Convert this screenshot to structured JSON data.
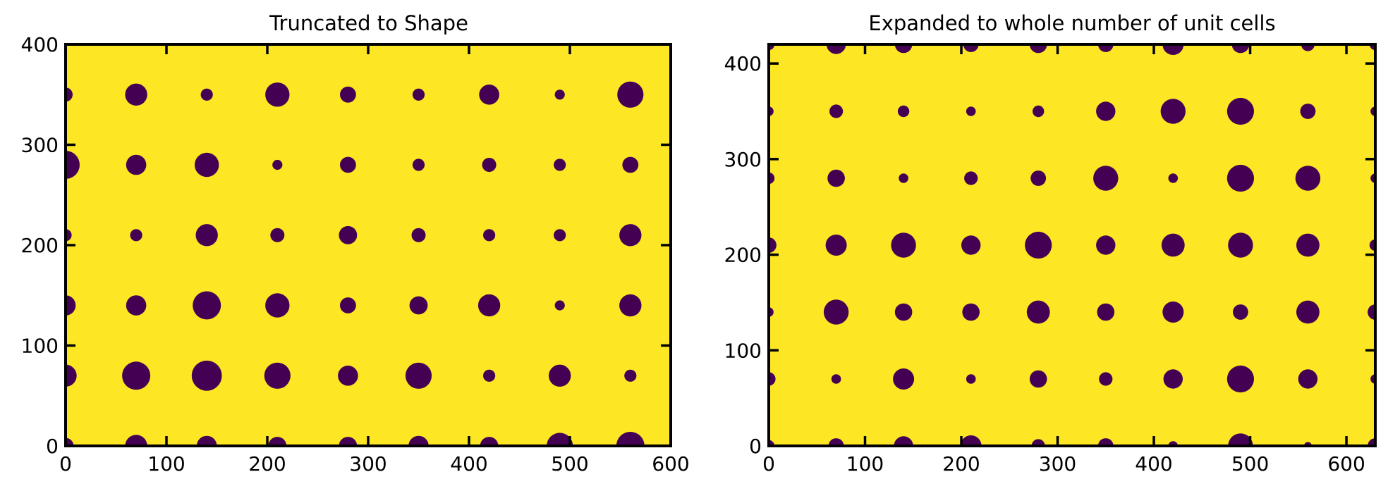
{
  "colors": {
    "background": "#fde725",
    "dots": "#440154",
    "frame": "#000000"
  },
  "chart_data": [
    {
      "type": "scatter",
      "title": "Truncated to Shape",
      "xlabel": "",
      "ylabel": "",
      "xlim": [
        0,
        600
      ],
      "ylim": [
        0,
        400
      ],
      "xticks": [
        "0",
        "100",
        "200",
        "300",
        "400",
        "500",
        "600"
      ],
      "yticks": [
        "0",
        "100",
        "200",
        "300",
        "400"
      ],
      "grid": false,
      "series": [
        {
          "marker_size_unit": "radius in data units",
          "points": [
            [
              0,
              0,
              8
            ],
            [
              70,
              0,
              11
            ],
            [
              140,
              0,
              10
            ],
            [
              210,
              0,
              9
            ],
            [
              280,
              0,
              9
            ],
            [
              350,
              0,
              10
            ],
            [
              420,
              0,
              9
            ],
            [
              490,
              0,
              13
            ],
            [
              560,
              0,
              14
            ],
            [
              0,
              70,
              11
            ],
            [
              70,
              70,
              14
            ],
            [
              140,
              70,
              15
            ],
            [
              210,
              70,
              13
            ],
            [
              280,
              70,
              10
            ],
            [
              350,
              70,
              13
            ],
            [
              420,
              70,
              6
            ],
            [
              490,
              70,
              11
            ],
            [
              560,
              70,
              6
            ],
            [
              0,
              140,
              10
            ],
            [
              70,
              140,
              10
            ],
            [
              140,
              140,
              14
            ],
            [
              210,
              140,
              12
            ],
            [
              280,
              140,
              8
            ],
            [
              350,
              140,
              9
            ],
            [
              420,
              140,
              11
            ],
            [
              490,
              140,
              5
            ],
            [
              560,
              140,
              11
            ],
            [
              0,
              210,
              6
            ],
            [
              70,
              210,
              6
            ],
            [
              140,
              210,
              11
            ],
            [
              210,
              210,
              7
            ],
            [
              280,
              210,
              9
            ],
            [
              350,
              210,
              7
            ],
            [
              420,
              210,
              6
            ],
            [
              490,
              210,
              6
            ],
            [
              560,
              210,
              11
            ],
            [
              0,
              280,
              14
            ],
            [
              70,
              280,
              10
            ],
            [
              140,
              280,
              12
            ],
            [
              210,
              280,
              5
            ],
            [
              280,
              280,
              8
            ],
            [
              350,
              280,
              6
            ],
            [
              420,
              280,
              7
            ],
            [
              490,
              280,
              6
            ],
            [
              560,
              280,
              8
            ],
            [
              0,
              350,
              7
            ],
            [
              70,
              350,
              11
            ],
            [
              140,
              350,
              6
            ],
            [
              210,
              350,
              12
            ],
            [
              280,
              350,
              8
            ],
            [
              350,
              350,
              6
            ],
            [
              420,
              350,
              10
            ],
            [
              490,
              350,
              5
            ],
            [
              560,
              350,
              13
            ]
          ]
        }
      ]
    },
    {
      "type": "scatter",
      "title": "Expanded to whole number of unit cells",
      "xlabel": "",
      "ylabel": "",
      "xlim": [
        0,
        630
      ],
      "ylim": [
        0,
        420
      ],
      "xticks": [
        "0",
        "100",
        "200",
        "300",
        "400",
        "500",
        "600"
      ],
      "yticks": [
        "0",
        "100",
        "200",
        "300",
        "400"
      ],
      "grid": false,
      "series": [
        {
          "marker_size_unit": "radius in data units",
          "points": [
            [
              0,
              0,
              6
            ],
            [
              70,
              0,
              8
            ],
            [
              140,
              0,
              10
            ],
            [
              210,
              0,
              11
            ],
            [
              280,
              0,
              7
            ],
            [
              350,
              0,
              8
            ],
            [
              420,
              0,
              5
            ],
            [
              490,
              0,
              13
            ],
            [
              560,
              0,
              4
            ],
            [
              630,
              0,
              8
            ],
            [
              0,
              70,
              7
            ],
            [
              70,
              70,
              5
            ],
            [
              140,
              70,
              11
            ],
            [
              210,
              70,
              5
            ],
            [
              280,
              70,
              9
            ],
            [
              350,
              70,
              7
            ],
            [
              420,
              70,
              10
            ],
            [
              490,
              70,
              14
            ],
            [
              560,
              70,
              10
            ],
            [
              630,
              70,
              5
            ],
            [
              0,
              140,
              5
            ],
            [
              70,
              140,
              13
            ],
            [
              140,
              140,
              9
            ],
            [
              210,
              140,
              9
            ],
            [
              280,
              140,
              12
            ],
            [
              350,
              140,
              9
            ],
            [
              420,
              140,
              11
            ],
            [
              490,
              140,
              8
            ],
            [
              560,
              140,
              12
            ],
            [
              630,
              140,
              8
            ],
            [
              0,
              210,
              8
            ],
            [
              70,
              210,
              11
            ],
            [
              140,
              210,
              13
            ],
            [
              210,
              210,
              10
            ],
            [
              280,
              210,
              14
            ],
            [
              350,
              210,
              10
            ],
            [
              420,
              210,
              12
            ],
            [
              490,
              210,
              13
            ],
            [
              560,
              210,
              12
            ],
            [
              630,
              210,
              6
            ],
            [
              0,
              280,
              6
            ],
            [
              70,
              280,
              9
            ],
            [
              140,
              280,
              5
            ],
            [
              210,
              280,
              7
            ],
            [
              280,
              280,
              8
            ],
            [
              350,
              280,
              13
            ],
            [
              420,
              280,
              5
            ],
            [
              490,
              280,
              14
            ],
            [
              560,
              280,
              13
            ],
            [
              630,
              280,
              5
            ],
            [
              0,
              350,
              5
            ],
            [
              70,
              350,
              7
            ],
            [
              140,
              350,
              6
            ],
            [
              210,
              350,
              5
            ],
            [
              280,
              350,
              6
            ],
            [
              350,
              350,
              10
            ],
            [
              420,
              350,
              13
            ],
            [
              490,
              350,
              14
            ],
            [
              560,
              350,
              8
            ],
            [
              630,
              350,
              5
            ],
            [
              0,
              420,
              6
            ],
            [
              70,
              420,
              10
            ],
            [
              140,
              420,
              9
            ],
            [
              210,
              420,
              8
            ],
            [
              280,
              420,
              9
            ],
            [
              350,
              420,
              8
            ],
            [
              420,
              420,
              11
            ],
            [
              490,
              420,
              9
            ],
            [
              560,
              420,
              7
            ],
            [
              630,
              420,
              6
            ]
          ]
        }
      ]
    }
  ]
}
